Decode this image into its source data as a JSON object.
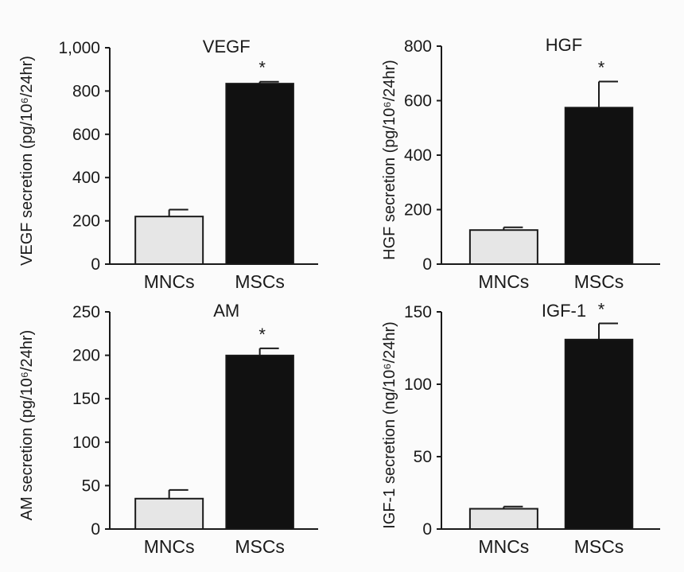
{
  "chart_data": [
    {
      "type": "bar",
      "title": "VEGF",
      "ylabel": "VEGF secretion (pg/10⁶/24hr)",
      "xlabel": "",
      "categories": [
        "MNCs",
        "MSCs"
      ],
      "values": [
        220,
        835
      ],
      "errors": [
        32,
        8
      ],
      "ylim": [
        0,
        1000
      ],
      "yticks": [
        0,
        200,
        400,
        600,
        800,
        1000
      ],
      "ytick_labels": [
        "0",
        "200",
        "400",
        "600",
        "800",
        "1,000"
      ],
      "significance": [
        "",
        "*"
      ],
      "bar_colors": [
        "#e6e6e6",
        "#111111"
      ]
    },
    {
      "type": "bar",
      "title": "HGF",
      "ylabel": "HGF secretion (pg/10⁶/24hr)",
      "xlabel": "",
      "categories": [
        "MNCs",
        "MSCs"
      ],
      "values": [
        125,
        575
      ],
      "errors": [
        10,
        95
      ],
      "ylim": [
        0,
        800
      ],
      "yticks": [
        0,
        200,
        400,
        600,
        800
      ],
      "ytick_labels": [
        "0",
        "200",
        "400",
        "600",
        "800"
      ],
      "significance": [
        "",
        "*"
      ],
      "bar_colors": [
        "#e6e6e6",
        "#111111"
      ]
    },
    {
      "type": "bar",
      "title": "AM",
      "ylabel": "AM secretion (pg/10⁶/24hr)",
      "xlabel": "",
      "categories": [
        "MNCs",
        "MSCs"
      ],
      "values": [
        35,
        200
      ],
      "errors": [
        10,
        8
      ],
      "ylim": [
        0,
        250
      ],
      "yticks": [
        0,
        50,
        100,
        150,
        200,
        250
      ],
      "ytick_labels": [
        "0",
        "50",
        "100",
        "150",
        "200",
        "250"
      ],
      "significance": [
        "",
        "*"
      ],
      "bar_colors": [
        "#e6e6e6",
        "#111111"
      ]
    },
    {
      "type": "bar",
      "title": "IGF-1",
      "ylabel": "IGF-1 secretion (ng/10⁶/24hr)",
      "xlabel": "",
      "categories": [
        "MNCs",
        "MSCs"
      ],
      "values": [
        14,
        131
      ],
      "errors": [
        1.5,
        11
      ],
      "ylim": [
        0,
        150
      ],
      "yticks": [
        0,
        50,
        100,
        150
      ],
      "ytick_labels": [
        "0",
        "50",
        "100",
        "150"
      ],
      "significance": [
        "",
        "*"
      ],
      "bar_colors": [
        "#e6e6e6",
        "#111111"
      ]
    }
  ]
}
